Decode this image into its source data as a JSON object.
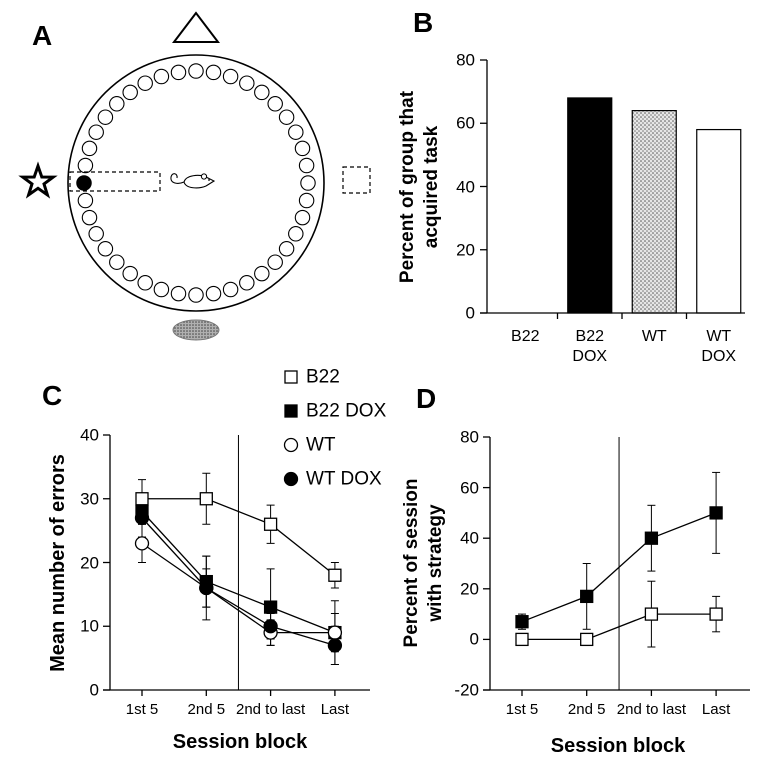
{
  "panel_a": {
    "label": "A"
  },
  "chart_data": [
    {
      "panel": "B",
      "type": "bar",
      "categories": [
        "B22",
        "B22 DOX",
        "WT",
        "WT DOX"
      ],
      "values": [
        0,
        68,
        64,
        58
      ],
      "bar_fills": [
        "#ffffff",
        "#000000",
        "dotted-gray",
        "#ffffff"
      ],
      "ylabel": "Percent of group that\nacquired task",
      "ylim": [
        0,
        80
      ],
      "yticks": [
        0,
        20,
        40,
        60,
        80
      ],
      "grid": false
    },
    {
      "panel": "C",
      "type": "line",
      "categories": [
        "1st 5",
        "2nd 5",
        "2nd to last",
        "Last"
      ],
      "series": [
        {
          "name": "B22",
          "marker": "open-square",
          "values": [
            30,
            30,
            26,
            18
          ],
          "errors": [
            3,
            4,
            3,
            2
          ]
        },
        {
          "name": "B22 DOX",
          "marker": "filled-square",
          "values": [
            28,
            17,
            13,
            9
          ],
          "errors": [
            2,
            4,
            6,
            5
          ]
        },
        {
          "name": "WT",
          "marker": "open-circle",
          "values": [
            23,
            16,
            9,
            9
          ],
          "errors": [
            3,
            5,
            2,
            3
          ]
        },
        {
          "name": "WT DOX",
          "marker": "filled-circle",
          "values": [
            27,
            16,
            10,
            7
          ],
          "errors": [
            3,
            3,
            2,
            3
          ]
        }
      ],
      "xlabel": "Session block",
      "ylabel": "Mean number of errors",
      "ylim": [
        0,
        40
      ],
      "yticks": [
        0,
        10,
        20,
        30,
        40
      ],
      "legend": "top-right",
      "grid": false
    },
    {
      "panel": "D",
      "type": "line",
      "categories": [
        "1st 5",
        "2nd 5",
        "2nd to last",
        "Last"
      ],
      "series": [
        {
          "marker": "open-square",
          "values": [
            0,
            0,
            10,
            10
          ],
          "errors": [
            0,
            0,
            13,
            7
          ]
        },
        {
          "marker": "filled-square",
          "values": [
            7,
            17,
            40,
            50
          ],
          "errors": [
            3,
            13,
            13,
            16
          ]
        }
      ],
      "xlabel": "Session block",
      "ylabel": "Percent of session\nwith strategy",
      "ylim": [
        -20,
        80
      ],
      "yticks": [
        -20,
        0,
        20,
        40,
        60,
        80
      ],
      "grid": false
    }
  ]
}
